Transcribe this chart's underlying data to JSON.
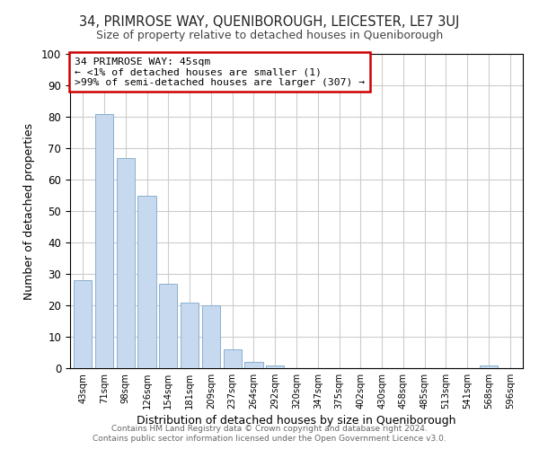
{
  "title": "34, PRIMROSE WAY, QUENIBOROUGH, LEICESTER, LE7 3UJ",
  "subtitle": "Size of property relative to detached houses in Queniborough",
  "xlabel": "Distribution of detached houses by size in Queniborough",
  "ylabel": "Number of detached properties",
  "bar_labels": [
    "43sqm",
    "71sqm",
    "98sqm",
    "126sqm",
    "154sqm",
    "181sqm",
    "209sqm",
    "237sqm",
    "264sqm",
    "292sqm",
    "320sqm",
    "347sqm",
    "375sqm",
    "402sqm",
    "430sqm",
    "458sqm",
    "485sqm",
    "513sqm",
    "541sqm",
    "568sqm",
    "596sqm"
  ],
  "bar_values": [
    28,
    81,
    67,
    55,
    27,
    21,
    20,
    6,
    2,
    1,
    0,
    0,
    0,
    0,
    0,
    0,
    0,
    0,
    0,
    1,
    0
  ],
  "bar_color": "#c6d9ee",
  "bar_edge_color": "#8ab0d0",
  "ylim": [
    0,
    100
  ],
  "yticks": [
    0,
    10,
    20,
    30,
    40,
    50,
    60,
    70,
    80,
    90,
    100
  ],
  "annotation_line1": "34 PRIMROSE WAY: 45sqm",
  "annotation_line2": "← <1% of detached houses are smaller (1)",
  "annotation_line3": ">99% of semi-detached houses are larger (307) →",
  "annotation_box_color": "#ffffff",
  "annotation_box_edge_color": "#cc0000",
  "footnote1": "Contains HM Land Registry data © Crown copyright and database right 2024.",
  "footnote2": "Contains public sector information licensed under the Open Government Licence v3.0.",
  "background_color": "#ffffff",
  "grid_color": "#cccccc"
}
